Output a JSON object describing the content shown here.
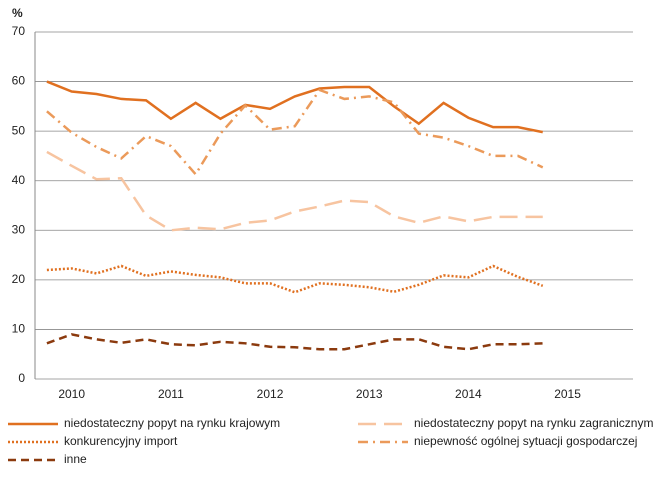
{
  "chart_data": {
    "type": "line",
    "ylabel": "%",
    "x": [
      2009.75,
      2010,
      2010.25,
      2010.5,
      2010.75,
      2011,
      2011.25,
      2011.5,
      2011.75,
      2012,
      2012.25,
      2012.5,
      2012.75,
      2013,
      2013.25,
      2013.5,
      2013.75,
      2014,
      2014.25,
      2014.5,
      2014.75
    ],
    "xlim": [
      2009.63,
      2015.66
    ],
    "xticks": [
      2010,
      2011,
      2012,
      2013,
      2014,
      2015
    ],
    "ylim": [
      0,
      70
    ],
    "yticks": [
      0,
      10,
      20,
      30,
      40,
      50,
      60,
      70
    ],
    "grid": true,
    "series": [
      {
        "name": "niedostateczny popyt na rynku krajowym",
        "color": "#e07020",
        "dash": "solid",
        "values": [
          60,
          58,
          57.5,
          56.5,
          56.2,
          52.5,
          55.7,
          52.5,
          55.3,
          54.5,
          57,
          58.6,
          58.9,
          58.9,
          55,
          51.5,
          55.7,
          52.7,
          50.8,
          50.8,
          49.8
        ]
      },
      {
        "name": "niedostateczny popyt na rynku zagranicznym",
        "color": "#f7c4a0",
        "dash": "longdash",
        "values": [
          45.8,
          43,
          40.3,
          40.5,
          33,
          30,
          30.5,
          30.2,
          31.5,
          32,
          33.8,
          34.8,
          36,
          35.7,
          32.8,
          31.5,
          32.8,
          31.8,
          32.7,
          32.7,
          32.7
        ]
      },
      {
        "name": "konkurencyjny import",
        "color": "#e07020",
        "dash": "dotted",
        "values": [
          22,
          22.3,
          21.3,
          22.8,
          20.8,
          21.7,
          21,
          20.5,
          19.3,
          19.3,
          17.5,
          19.3,
          19,
          18.5,
          17.6,
          19,
          20.9,
          20.5,
          22.8,
          20.6,
          18.8
        ]
      },
      {
        "name": "niepewność ogólnej sytuacji gospodarczej",
        "color": "#eb9a5a",
        "dash": "dashdot",
        "values": [
          54,
          49.7,
          46.8,
          44.5,
          49,
          47,
          41.3,
          49.5,
          55.2,
          50.3,
          51,
          58.3,
          56.5,
          57,
          55.8,
          49.5,
          48.7,
          47,
          45,
          45,
          42.7
        ]
      },
      {
        "name": "inne",
        "color": "#8b3a0e",
        "dash": "dashed",
        "values": [
          7.2,
          9,
          8,
          7.3,
          8,
          7,
          6.8,
          7.5,
          7.2,
          6.5,
          6.4,
          6,
          6,
          7,
          8,
          8,
          6.5,
          6,
          7,
          7,
          7.2
        ]
      }
    ]
  }
}
